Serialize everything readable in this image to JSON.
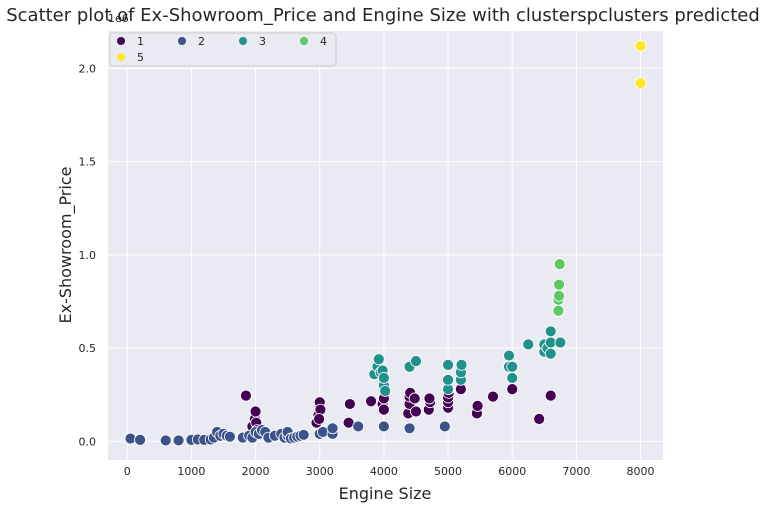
{
  "chart_data": {
    "type": "scatter",
    "title": "Scatter plot of Ex-Showroom_Price and Engine Size with clusterspclusters predicted",
    "xlabel": "Engine Size",
    "ylabel": "Ex-Showroom_Price",
    "xlim": [
      -300,
      8350
    ],
    "ylim": [
      -0.1,
      2.2
    ],
    "y_offset_label": "1e6",
    "x_ticks": [
      0,
      1000,
      2000,
      3000,
      4000,
      5000,
      6000,
      7000,
      8000
    ],
    "x_tick_labels": [
      "0",
      "1000",
      "2000",
      "3000",
      "4000",
      "5000",
      "6000",
      "7000",
      "8000"
    ],
    "y_ticks": [
      0.0,
      0.5,
      1.0,
      1.5,
      2.0
    ],
    "y_tick_labels": [
      "0.0",
      "0.5",
      "1.0",
      "1.5",
      "2.0"
    ],
    "grid": true,
    "legend_position": "top-left",
    "legend_title": "",
    "background_color": "#eaeaf2",
    "series": [
      {
        "name": "1",
        "color": "#440154",
        "points": [
          [
            1850,
            0.245
          ],
          [
            1950,
            0.08
          ],
          [
            1990,
            0.12
          ],
          [
            2000,
            0.16
          ],
          [
            2010,
            0.1
          ],
          [
            2020,
            0.06
          ],
          [
            2950,
            0.1
          ],
          [
            2980,
            0.14
          ],
          [
            3000,
            0.19
          ],
          [
            3000,
            0.21
          ],
          [
            3010,
            0.17
          ],
          [
            2990,
            0.12
          ],
          [
            3450,
            0.1
          ],
          [
            3470,
            0.2
          ],
          [
            3800,
            0.215
          ],
          [
            3980,
            0.2
          ],
          [
            4000,
            0.17
          ],
          [
            4000,
            0.23
          ],
          [
            4380,
            0.15
          ],
          [
            4400,
            0.2
          ],
          [
            4400,
            0.24
          ],
          [
            4410,
            0.26
          ],
          [
            4480,
            0.23
          ],
          [
            4500,
            0.16
          ],
          [
            4700,
            0.17
          ],
          [
            4720,
            0.21
          ],
          [
            4710,
            0.23
          ],
          [
            5000,
            0.18
          ],
          [
            5000,
            0.21
          ],
          [
            5000,
            0.235
          ],
          [
            5010,
            0.26
          ],
          [
            5010,
            0.28
          ],
          [
            5200,
            0.28
          ],
          [
            5450,
            0.15
          ],
          [
            5460,
            0.19
          ],
          [
            5700,
            0.24
          ],
          [
            6000,
            0.28
          ],
          [
            6420,
            0.12
          ],
          [
            6600,
            0.245
          ]
        ]
      },
      {
        "name": "2",
        "color": "#3b528b",
        "points": [
          [
            50,
            0.015
          ],
          [
            200,
            0.008
          ],
          [
            600,
            0.005
          ],
          [
            800,
            0.005
          ],
          [
            1000,
            0.008
          ],
          [
            1100,
            0.01
          ],
          [
            1200,
            0.008
          ],
          [
            1300,
            0.01
          ],
          [
            1350,
            0.02
          ],
          [
            1400,
            0.05
          ],
          [
            1450,
            0.03
          ],
          [
            1500,
            0.04
          ],
          [
            1550,
            0.03
          ],
          [
            1600,
            0.025
          ],
          [
            1800,
            0.02
          ],
          [
            1900,
            0.03
          ],
          [
            1950,
            0.02
          ],
          [
            2000,
            0.05
          ],
          [
            2050,
            0.04
          ],
          [
            2100,
            0.06
          ],
          [
            2150,
            0.05
          ],
          [
            2200,
            0.02
          ],
          [
            2300,
            0.03
          ],
          [
            2400,
            0.04
          ],
          [
            2450,
            0.02
          ],
          [
            2500,
            0.03
          ],
          [
            2500,
            0.05
          ],
          [
            2550,
            0.015
          ],
          [
            2600,
            0.02
          ],
          [
            2650,
            0.025
          ],
          [
            2700,
            0.03
          ],
          [
            2750,
            0.035
          ],
          [
            3000,
            0.04
          ],
          [
            3050,
            0.05
          ],
          [
            3200,
            0.04
          ],
          [
            3200,
            0.07
          ],
          [
            3600,
            0.08
          ],
          [
            4000,
            0.08
          ],
          [
            4400,
            0.07
          ],
          [
            4950,
            0.08
          ]
        ]
      },
      {
        "name": "3",
        "color": "#21918c",
        "points": [
          [
            3850,
            0.36
          ],
          [
            3900,
            0.4
          ],
          [
            3920,
            0.44
          ],
          [
            3950,
            0.37
          ],
          [
            3980,
            0.38
          ],
          [
            4000,
            0.3
          ],
          [
            4000,
            0.34
          ],
          [
            4020,
            0.27
          ],
          [
            4400,
            0.4
          ],
          [
            4500,
            0.43
          ],
          [
            5000,
            0.28
          ],
          [
            5000,
            0.33
          ],
          [
            5000,
            0.41
          ],
          [
            5200,
            0.33
          ],
          [
            5200,
            0.37
          ],
          [
            5210,
            0.41
          ],
          [
            5950,
            0.4
          ],
          [
            5950,
            0.46
          ],
          [
            6000,
            0.34
          ],
          [
            6000,
            0.4
          ],
          [
            6250,
            0.52
          ],
          [
            6500,
            0.48
          ],
          [
            6500,
            0.52
          ],
          [
            6550,
            0.5
          ],
          [
            6600,
            0.47
          ],
          [
            6600,
            0.53
          ],
          [
            6600,
            0.59
          ],
          [
            6750,
            0.53
          ]
        ]
      },
      {
        "name": "4",
        "color": "#5ec962",
        "points": [
          [
            6720,
            0.7
          ],
          [
            6720,
            0.76
          ],
          [
            6730,
            0.78
          ],
          [
            6730,
            0.84
          ],
          [
            6740,
            0.95
          ]
        ]
      },
      {
        "name": "5",
        "color": "#fde725",
        "points": [
          [
            8000,
            1.92
          ],
          [
            8000,
            2.12
          ]
        ]
      }
    ]
  }
}
